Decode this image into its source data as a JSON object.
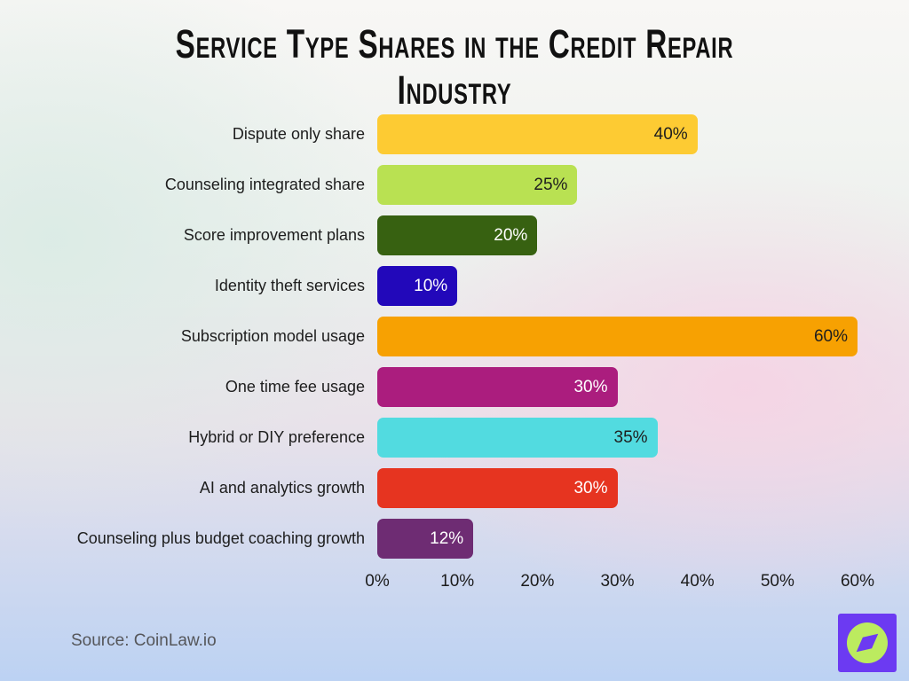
{
  "title": "Service Type Shares in the Credit Repair Industry",
  "source": "Source: CoinLaw.io",
  "logo": {
    "square_color": "#6C3AF2",
    "circle_color": "#BCEB5F",
    "needle_color": "#6C3AF2",
    "icon": "compass-leaf-icon"
  },
  "chart_data": {
    "type": "bar",
    "orientation": "horizontal",
    "title": "Service Type Shares in the Credit Repair Industry",
    "categories": [
      "Dispute only share",
      "Counseling integrated share",
      "Score improvement plans",
      "Identity theft services",
      "Subscription model usage",
      "One time fee usage",
      "Hybrid or DIY preference",
      "AI and analytics growth",
      "Counseling plus budget coaching growth"
    ],
    "values": [
      40,
      25,
      20,
      10,
      60,
      30,
      35,
      30,
      12
    ],
    "value_labels": [
      "40%",
      "25%",
      "20%",
      "10%",
      "60%",
      "30%",
      "35%",
      "30%",
      "12%"
    ],
    "colors": [
      "#FDCB33",
      "#B9E152",
      "#376111",
      "#2208BA",
      "#F7A102",
      "#AB1D7E",
      "#52DBE0",
      "#E63420",
      "#6E2C73"
    ],
    "value_text_colors": [
      "#1e1e1e",
      "#1e1e1e",
      "#ffffff",
      "#ffffff",
      "#1e1e1e",
      "#ffffff",
      "#1e1e1e",
      "#ffffff",
      "#ffffff"
    ],
    "x_ticks": [
      "0%",
      "10%",
      "20%",
      "30%",
      "40%",
      "50%",
      "60%"
    ],
    "xlim": [
      0,
      60
    ],
    "xlabel": "",
    "ylabel": "",
    "grid": false,
    "legend": false
  }
}
